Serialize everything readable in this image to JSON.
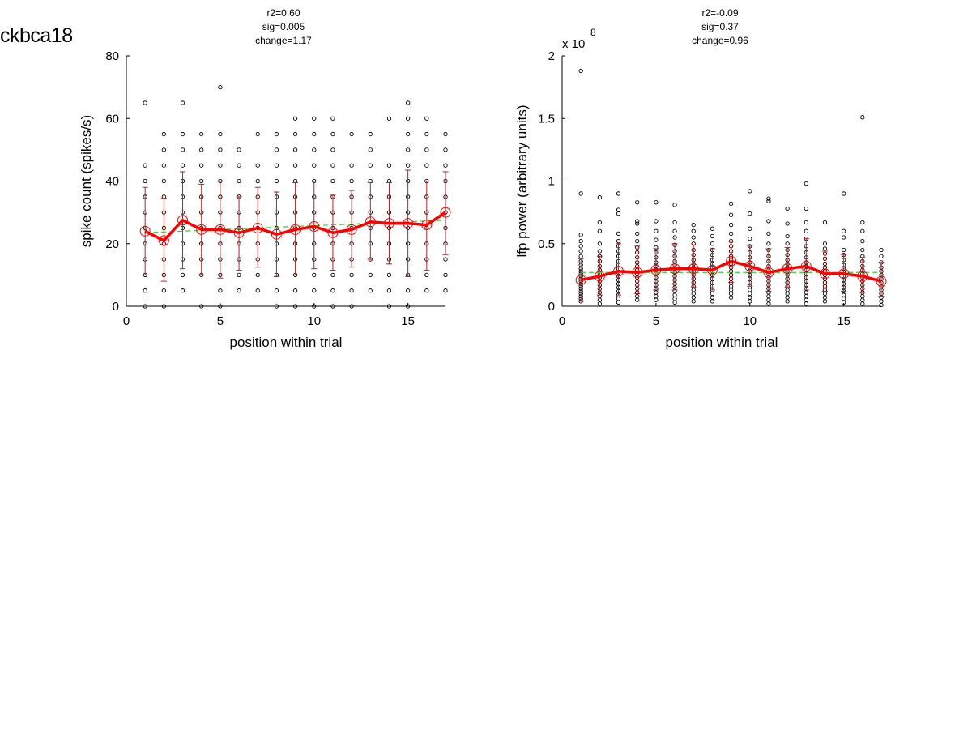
{
  "figure": {
    "title": "ckbca18"
  },
  "chart_data": [
    {
      "type": "scatter",
      "id": "spike",
      "stats": [
        "r2=0.60",
        "sig=0.005",
        "change=1.17"
      ],
      "xlabel": "position within trial",
      "ylabel": "spike count (spikes/s)",
      "xlim": [
        0,
        17
      ],
      "ylim": [
        0,
        80
      ],
      "xticks": [
        0,
        5,
        10,
        15
      ],
      "yticks": [
        0,
        20,
        40,
        60,
        80
      ],
      "ytick_labels": [
        "0",
        "20",
        "40",
        "60",
        "80"
      ],
      "exponent_label": "",
      "x": [
        1,
        2,
        3,
        4,
        5,
        6,
        7,
        8,
        9,
        10,
        11,
        12,
        13,
        14,
        15,
        16,
        17
      ],
      "mean": [
        24.0,
        21.0,
        27.5,
        24.5,
        24.5,
        23.5,
        25.0,
        23.0,
        24.5,
        25.5,
        23.5,
        24.5,
        27.0,
        26.5,
        26.5,
        26.0,
        30.0
      ],
      "error_low": [
        10,
        8,
        12,
        10,
        9,
        11.5,
        12.5,
        9.5,
        10,
        12,
        11.5,
        12.5,
        15,
        13.5,
        9.5,
        11.5,
        16.5
      ],
      "error_high": [
        38,
        34.5,
        43,
        39,
        40,
        35,
        38,
        36.5,
        39.5,
        40,
        35.5,
        37,
        39.5,
        39.5,
        43.5,
        40,
        43
      ],
      "trend": {
        "start": 23.5,
        "end": 27.5,
        "label": "fit"
      },
      "points": [
        [
          1,
          [
            0,
            5,
            10,
            15,
            20,
            25,
            30,
            35,
            40,
            45,
            65
          ]
        ],
        [
          2,
          [
            0,
            5,
            10,
            15,
            20,
            25,
            30,
            35,
            40,
            45,
            50,
            55
          ]
        ],
        [
          3,
          [
            5,
            10,
            15,
            20,
            25,
            30,
            35,
            40,
            45,
            50,
            55,
            65
          ]
        ],
        [
          4,
          [
            0,
            10,
            15,
            20,
            25,
            30,
            35,
            40,
            45,
            50,
            55
          ]
        ],
        [
          5,
          [
            0,
            5,
            10,
            15,
            20,
            25,
            30,
            35,
            40,
            45,
            50,
            55,
            70
          ]
        ],
        [
          6,
          [
            5,
            10,
            15,
            20,
            25,
            30,
            35,
            40,
            45,
            50
          ]
        ],
        [
          7,
          [
            5,
            10,
            15,
            20,
            25,
            30,
            35,
            40,
            45,
            55
          ]
        ],
        [
          8,
          [
            0,
            5,
            10,
            15,
            20,
            25,
            30,
            35,
            40,
            45,
            50,
            55
          ]
        ],
        [
          9,
          [
            0,
            5,
            10,
            15,
            20,
            25,
            30,
            35,
            40,
            45,
            50,
            55,
            60
          ]
        ],
        [
          10,
          [
            0,
            5,
            10,
            15,
            20,
            25,
            30,
            35,
            40,
            45,
            50,
            55,
            60
          ]
        ],
        [
          11,
          [
            0,
            5,
            10,
            15,
            20,
            25,
            30,
            35,
            40,
            45,
            50,
            55,
            60
          ]
        ],
        [
          12,
          [
            0,
            5,
            10,
            15,
            20,
            25,
            30,
            35,
            40,
            45,
            55
          ]
        ],
        [
          13,
          [
            5,
            10,
            15,
            20,
            25,
            30,
            35,
            40,
            45,
            50,
            55
          ]
        ],
        [
          14,
          [
            0,
            5,
            10,
            15,
            20,
            25,
            30,
            35,
            40,
            45,
            60
          ]
        ],
        [
          15,
          [
            0,
            5,
            10,
            15,
            20,
            25,
            30,
            35,
            40,
            45,
            50,
            55,
            60,
            65
          ]
        ],
        [
          16,
          [
            5,
            10,
            15,
            20,
            25,
            30,
            35,
            40,
            45,
            50,
            55,
            60
          ]
        ],
        [
          17,
          [
            5,
            10,
            15,
            20,
            25,
            30,
            35,
            40,
            45,
            50,
            55
          ]
        ]
      ]
    },
    {
      "type": "scatter",
      "id": "lfp",
      "stats": [
        "r2=-0.09",
        "sig=0.37",
        "change=0.96"
      ],
      "xlabel": "position within trial",
      "ylabel": "lfp power (arbitrary units)",
      "xlim": [
        0,
        17
      ],
      "ylim": [
        0,
        2
      ],
      "xticks": [
        0,
        5,
        10,
        15
      ],
      "yticks": [
        0,
        0.5,
        1,
        1.5,
        2
      ],
      "ytick_labels": [
        "0",
        "0.5",
        "1",
        "1.5",
        "2"
      ],
      "exponent_label": "x 10",
      "exponent_power": "8",
      "x": [
        1,
        2,
        3,
        4,
        5,
        6,
        7,
        8,
        9,
        10,
        11,
        12,
        13,
        14,
        15,
        16,
        17
      ],
      "mean": [
        0.21,
        0.24,
        0.28,
        0.27,
        0.29,
        0.3,
        0.3,
        0.29,
        0.36,
        0.32,
        0.27,
        0.3,
        0.32,
        0.26,
        0.26,
        0.24,
        0.2
      ],
      "error_low": [
        0.04,
        0.09,
        0.09,
        0.1,
        0.13,
        0.13,
        0.15,
        0.13,
        0.19,
        0.16,
        0.12,
        0.15,
        0.13,
        0.12,
        0.12,
        0.11,
        0.08
      ],
      "error_high": [
        0.38,
        0.4,
        0.5,
        0.48,
        0.46,
        0.5,
        0.49,
        0.46,
        0.52,
        0.48,
        0.46,
        0.47,
        0.54,
        0.44,
        0.41,
        0.39,
        0.35
      ],
      "trend": {
        "start": 0.27,
        "end": 0.27,
        "label": "fit"
      },
      "points": [
        [
          1,
          [
            0.04,
            0.06,
            0.08,
            0.1,
            0.12,
            0.14,
            0.16,
            0.18,
            0.2,
            0.22,
            0.24,
            0.26,
            0.28,
            0.3,
            0.33,
            0.36,
            0.4,
            0.44,
            0.48,
            0.52,
            0.57,
            0.9,
            1.88
          ]
        ],
        [
          2,
          [
            0.02,
            0.05,
            0.08,
            0.11,
            0.14,
            0.17,
            0.2,
            0.23,
            0.26,
            0.29,
            0.32,
            0.36,
            0.4,
            0.44,
            0.5,
            0.6,
            0.67,
            0.87
          ]
        ],
        [
          3,
          [
            0.03,
            0.06,
            0.09,
            0.12,
            0.15,
            0.18,
            0.21,
            0.24,
            0.27,
            0.3,
            0.33,
            0.36,
            0.4,
            0.44,
            0.48,
            0.52,
            0.58,
            0.74,
            0.77,
            0.9
          ]
        ],
        [
          4,
          [
            0.05,
            0.08,
            0.11,
            0.14,
            0.17,
            0.2,
            0.23,
            0.26,
            0.29,
            0.32,
            0.35,
            0.39,
            0.43,
            0.47,
            0.52,
            0.58,
            0.66,
            0.68,
            0.83
          ]
        ],
        [
          5,
          [
            0.05,
            0.08,
            0.11,
            0.14,
            0.17,
            0.2,
            0.23,
            0.26,
            0.29,
            0.32,
            0.35,
            0.39,
            0.43,
            0.47,
            0.53,
            0.6,
            0.68,
            0.83
          ]
        ],
        [
          6,
          [
            0.03,
            0.06,
            0.09,
            0.12,
            0.15,
            0.18,
            0.21,
            0.24,
            0.27,
            0.3,
            0.33,
            0.36,
            0.4,
            0.44,
            0.49,
            0.55,
            0.6,
            0.67,
            0.81
          ]
        ],
        [
          7,
          [
            0.04,
            0.07,
            0.1,
            0.13,
            0.16,
            0.19,
            0.22,
            0.25,
            0.28,
            0.31,
            0.34,
            0.37,
            0.41,
            0.45,
            0.5,
            0.55,
            0.6,
            0.65
          ]
        ],
        [
          8,
          [
            0.04,
            0.07,
            0.1,
            0.13,
            0.16,
            0.19,
            0.22,
            0.25,
            0.28,
            0.31,
            0.34,
            0.37,
            0.41,
            0.45,
            0.5,
            0.56,
            0.62
          ]
        ],
        [
          9,
          [
            0.07,
            0.1,
            0.13,
            0.16,
            0.19,
            0.22,
            0.25,
            0.28,
            0.31,
            0.34,
            0.37,
            0.4,
            0.44,
            0.48,
            0.52,
            0.58,
            0.65,
            0.73,
            0.82
          ]
        ],
        [
          10,
          [
            0.04,
            0.07,
            0.1,
            0.13,
            0.16,
            0.19,
            0.22,
            0.25,
            0.28,
            0.31,
            0.35,
            0.39,
            0.43,
            0.48,
            0.54,
            0.62,
            0.74,
            0.92
          ]
        ],
        [
          11,
          [
            0.02,
            0.05,
            0.08,
            0.11,
            0.14,
            0.17,
            0.2,
            0.23,
            0.26,
            0.29,
            0.32,
            0.36,
            0.4,
            0.45,
            0.5,
            0.58,
            0.68,
            0.84,
            0.86
          ]
        ],
        [
          12,
          [
            0.04,
            0.07,
            0.1,
            0.13,
            0.16,
            0.19,
            0.22,
            0.25,
            0.28,
            0.31,
            0.34,
            0.37,
            0.41,
            0.45,
            0.5,
            0.56,
            0.66,
            0.78
          ]
        ],
        [
          13,
          [
            0.02,
            0.05,
            0.08,
            0.11,
            0.14,
            0.17,
            0.2,
            0.23,
            0.26,
            0.29,
            0.32,
            0.35,
            0.39,
            0.43,
            0.48,
            0.54,
            0.6,
            0.67,
            0.78,
            0.98
          ]
        ],
        [
          14,
          [
            0.04,
            0.07,
            0.1,
            0.13,
            0.16,
            0.19,
            0.22,
            0.25,
            0.28,
            0.31,
            0.34,
            0.38,
            0.42,
            0.46,
            0.5,
            0.67
          ]
        ],
        [
          15,
          [
            0.03,
            0.06,
            0.09,
            0.12,
            0.15,
            0.18,
            0.21,
            0.24,
            0.27,
            0.3,
            0.33,
            0.37,
            0.41,
            0.45,
            0.55,
            0.6,
            0.9
          ]
        ],
        [
          16,
          [
            0.02,
            0.05,
            0.08,
            0.11,
            0.14,
            0.17,
            0.2,
            0.23,
            0.26,
            0.29,
            0.32,
            0.36,
            0.4,
            0.45,
            0.52,
            0.6,
            0.67,
            1.51
          ]
        ],
        [
          17,
          [
            0.01,
            0.04,
            0.07,
            0.1,
            0.13,
            0.16,
            0.19,
            0.22,
            0.25,
            0.28,
            0.31,
            0.35,
            0.4,
            0.45
          ]
        ]
      ]
    }
  ],
  "colors": {
    "mean_line": "#ff0000",
    "error_bar": "#b22222",
    "trend_line": "#33cc33",
    "points": "#000000"
  }
}
